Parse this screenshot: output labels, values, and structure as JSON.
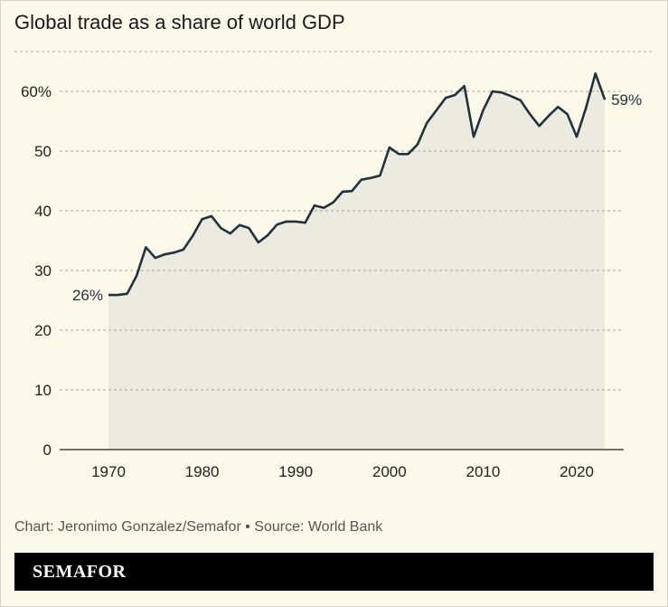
{
  "title": "Global trade as a share of world GDP",
  "source": "Chart: Jeronimo Gonzalez/Semafor • Source: World Bank",
  "brand": "SEMAFOR",
  "chart_data": {
    "type": "area",
    "title": "Global trade as a share of world GDP",
    "xlabel": "",
    "ylabel": "",
    "ylim": [
      0,
      65
    ],
    "xlim": [
      1965,
      2025
    ],
    "grid": true,
    "y_ticks": [
      "0",
      "10",
      "20",
      "30",
      "40",
      "50",
      "60%"
    ],
    "y_tick_values": [
      0,
      10,
      20,
      30,
      40,
      50,
      60
    ],
    "x_ticks": [
      "1970",
      "1980",
      "1990",
      "2000",
      "2010",
      "2020"
    ],
    "x_tick_values": [
      1970,
      1980,
      1990,
      2000,
      2010,
      2020
    ],
    "annotations": [
      {
        "text": "26%",
        "x": 1970,
        "y": 25.9
      },
      {
        "text": "59%",
        "x": 2023,
        "y": 58.6
      }
    ],
    "colors": {
      "line": "#1d3340",
      "fill": "#edebe0",
      "background": "#fdf9e9"
    },
    "x": [
      1970,
      1971,
      1972,
      1973,
      1974,
      1975,
      1976,
      1977,
      1978,
      1979,
      1980,
      1981,
      1982,
      1983,
      1984,
      1985,
      1986,
      1987,
      1988,
      1989,
      1990,
      1991,
      1992,
      1993,
      1994,
      1995,
      1996,
      1997,
      1998,
      1999,
      2000,
      2001,
      2002,
      2003,
      2004,
      2005,
      2006,
      2007,
      2008,
      2009,
      2010,
      2011,
      2012,
      2013,
      2014,
      2015,
      2016,
      2017,
      2018,
      2019,
      2020,
      2021,
      2022,
      2023
    ],
    "values": [
      25.9,
      25.9,
      26.1,
      29.1,
      33.9,
      32.1,
      32.7,
      33.0,
      33.5,
      35.8,
      38.6,
      39.1,
      37.1,
      36.2,
      37.6,
      37.1,
      34.7,
      35.9,
      37.7,
      38.2,
      38.2,
      38.0,
      40.9,
      40.5,
      41.4,
      43.2,
      43.3,
      45.2,
      45.5,
      45.9,
      50.6,
      49.5,
      49.5,
      51.1,
      54.7,
      56.8,
      58.9,
      59.4,
      60.9,
      52.4,
      56.8,
      60.0,
      59.8,
      59.2,
      58.5,
      56.2,
      54.2,
      55.9,
      57.4,
      56.2,
      52.4,
      57.3,
      63.0,
      58.6
    ]
  }
}
